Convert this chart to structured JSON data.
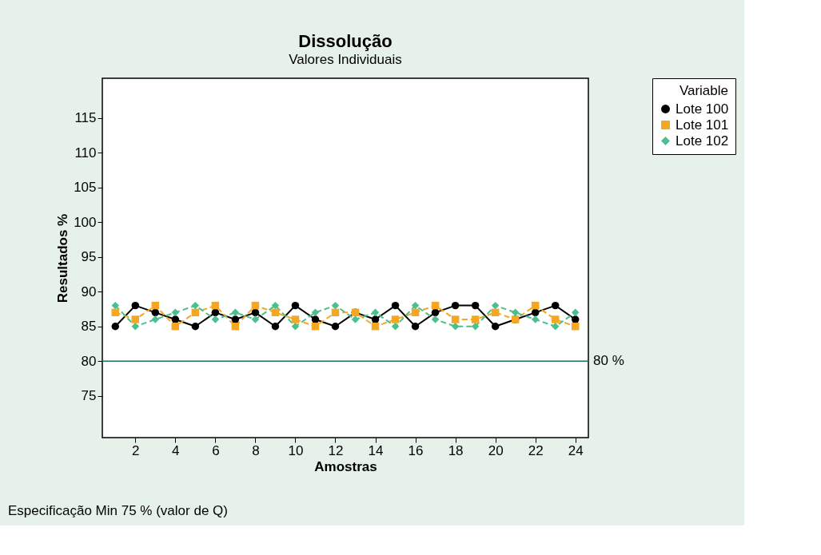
{
  "chart_data": {
    "type": "line",
    "title": "Dissolução",
    "subtitle": "Valores Individuais",
    "xlabel": "Amostras",
    "ylabel": "Resultados %",
    "legend_title": "Variable",
    "x": [
      1,
      2,
      3,
      4,
      5,
      6,
      7,
      8,
      9,
      10,
      11,
      12,
      13,
      14,
      15,
      16,
      17,
      18,
      19,
      20,
      21,
      22,
      23,
      24
    ],
    "series": [
      {
        "name": "Lote 100",
        "color": "#000000",
        "marker": "circle",
        "line_style": "solid",
        "values": [
          85,
          88,
          87,
          86,
          85,
          87,
          86,
          87,
          85,
          88,
          86,
          85,
          87,
          86,
          88,
          85,
          87,
          88,
          88,
          85,
          86,
          87,
          88,
          86
        ]
      },
      {
        "name": "Lote 101",
        "color": "#f5a623",
        "marker": "square",
        "line_style": "dashed",
        "values": [
          87,
          86,
          88,
          85,
          87,
          88,
          85,
          88,
          87,
          86,
          85,
          87,
          87,
          85,
          86,
          87,
          88,
          86,
          86,
          87,
          86,
          88,
          86,
          85
        ]
      },
      {
        "name": "Lote 102",
        "color": "#4cc08c",
        "marker": "diamond",
        "line_style": "dashed",
        "values": [
          88,
          85,
          86,
          87,
          88,
          86,
          87,
          86,
          88,
          85,
          87,
          88,
          86,
          87,
          85,
          88,
          86,
          85,
          85,
          88,
          87,
          86,
          85,
          87
        ]
      }
    ],
    "xlim": [
      0.35,
      24.65
    ],
    "ylim": [
      69,
      120.7
    ],
    "xticks": [
      2,
      4,
      6,
      8,
      10,
      12,
      14,
      16,
      18,
      20,
      22,
      24
    ],
    "yticks": [
      75,
      80,
      85,
      90,
      95,
      100,
      105,
      110,
      115
    ],
    "ref_lines": [
      {
        "axis": "y",
        "value": 80,
        "label": "80 %",
        "color": "#1f6e5e"
      }
    ],
    "annotations": [
      "Especificação Min 75 % (valor de Q)"
    ],
    "grid": false,
    "legend": "top right"
  }
}
